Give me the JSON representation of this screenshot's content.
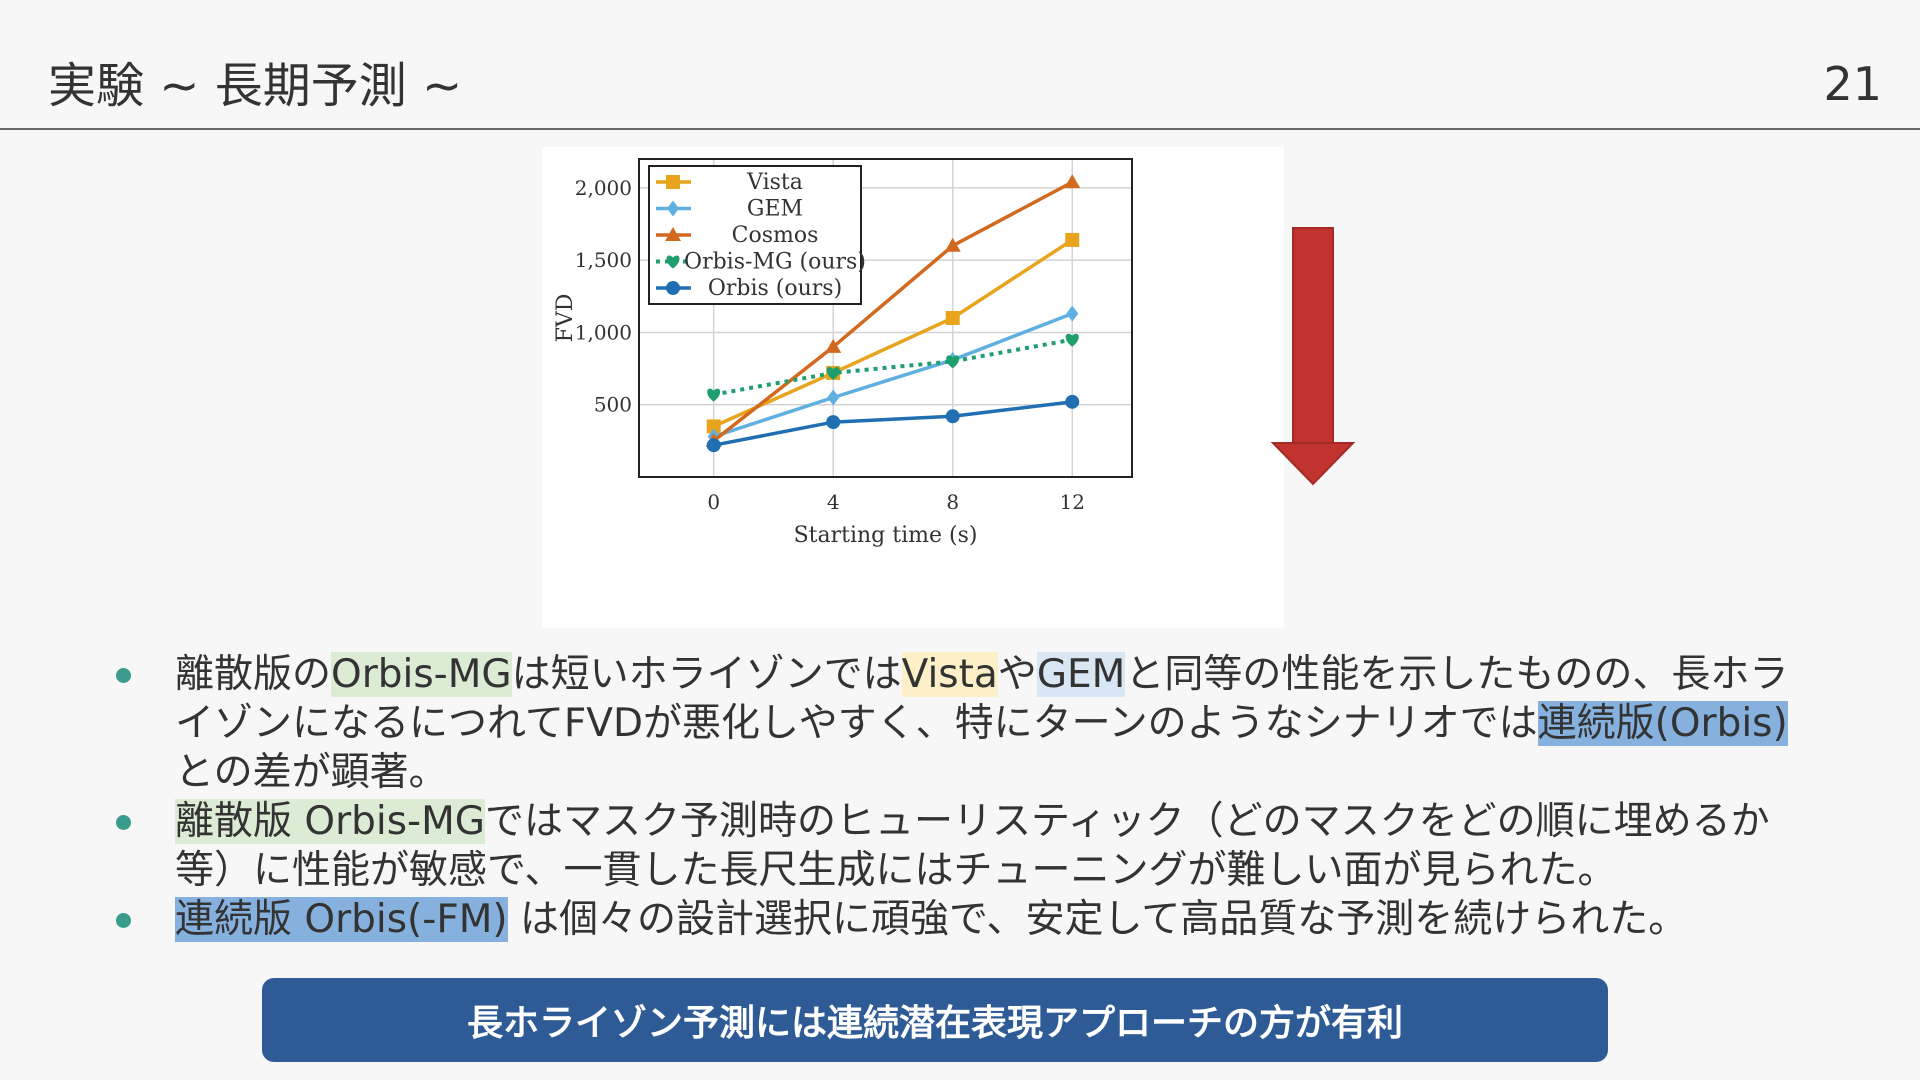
{
  "header": {
    "title": "実験 ~ 長期予測 ~",
    "page_number": "21"
  },
  "chart_data": {
    "type": "line",
    "xlabel": "Starting time (s)",
    "ylabel": "FVD",
    "x": [
      0,
      4,
      8,
      12
    ],
    "xticks": [
      "0",
      "4",
      "8",
      "12"
    ],
    "yticks": [
      {
        "value": 500,
        "label": "500"
      },
      {
        "value": 1000,
        "label": "1,000"
      },
      {
        "value": 1500,
        "label": "1,500"
      },
      {
        "value": 2000,
        "label": "2,000"
      }
    ],
    "xlim": [
      -2.5,
      14
    ],
    "ylim": [
      0,
      2200
    ],
    "grid": true,
    "legend_position": "top-left",
    "series": [
      {
        "name": "Vista",
        "color": "#e8a41c",
        "marker": "square",
        "dashed": false,
        "values": [
          350,
          720,
          1100,
          1640
        ]
      },
      {
        "name": "GEM",
        "color": "#5fb0e0",
        "marker": "diamond",
        "dashed": false,
        "values": [
          280,
          550,
          810,
          1130
        ]
      },
      {
        "name": "Cosmos",
        "color": "#d2691e",
        "marker": "triangle",
        "dashed": false,
        "values": [
          250,
          900,
          1600,
          2040
        ]
      },
      {
        "name": "Orbis-MG (ours)",
        "color": "#1f9e6e",
        "marker": "heart",
        "dashed": true,
        "values": [
          570,
          720,
          800,
          950
        ]
      },
      {
        "name": "Orbis (ours)",
        "color": "#1f6fb2",
        "marker": "circle",
        "dashed": false,
        "values": [
          220,
          380,
          420,
          520
        ]
      }
    ]
  },
  "bullets": [
    {
      "parts": [
        {
          "text": "離散版の",
          "hl": ""
        },
        {
          "text": "Orbis-MG",
          "hl": "green"
        },
        {
          "text": "は短いホライゾンでは",
          "hl": ""
        },
        {
          "text": "Vista",
          "hl": "yellow"
        },
        {
          "text": "や",
          "hl": ""
        },
        {
          "text": "GEM",
          "hl": "lightblue"
        },
        {
          "text": "と同等の性能を示したものの、長ホライゾンになるにつれてFVDが悪化しやすく、特にターンのようなシナリオでは",
          "hl": ""
        },
        {
          "text": "連続版(Orbis)",
          "hl": "blue"
        },
        {
          "text": " との差が顕著。",
          "hl": ""
        }
      ]
    },
    {
      "parts": [
        {
          "text": "離散版 Orbis-MG",
          "hl": "green"
        },
        {
          "text": "ではマスク予測時のヒューリスティック（どのマスクをどの順に埋めるか等）に性能が敏感で、一貫した長尺生成にはチューニングが難しい面が見られた。",
          "hl": ""
        }
      ]
    },
    {
      "parts": [
        {
          "text": "連続版 Orbis(-FM)",
          "hl": "blue"
        },
        {
          "text": " は個々の設計選択に頑強で、安定して高品質な予測を続けられた。",
          "hl": ""
        }
      ]
    }
  ],
  "banner": {
    "text": "長ホライゾン予測には連続潜在表現アプローチの方が有利",
    "color": "#2e5b95"
  },
  "arrow": {
    "direction": "down",
    "color": "#c0332e"
  }
}
